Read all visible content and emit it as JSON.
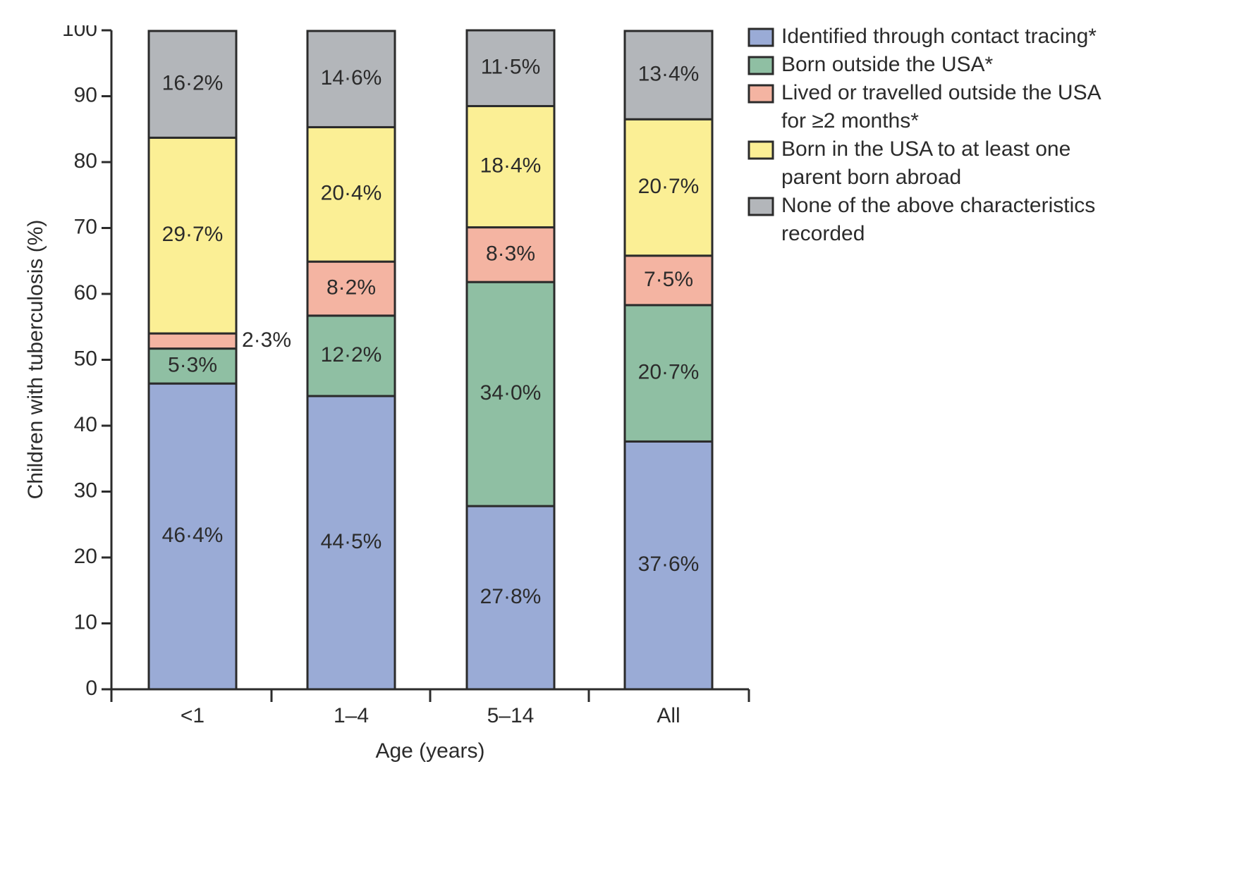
{
  "chart_data": {
    "type": "bar",
    "stacked": true,
    "xlabel": "Age (years)",
    "ylabel": "Children with tuberculosis (%)",
    "ylim": [
      0,
      100
    ],
    "yticks": [
      0,
      10,
      20,
      30,
      40,
      50,
      60,
      70,
      80,
      90,
      100
    ],
    "categories": [
      "<1",
      "1–4",
      "5–14",
      "All"
    ],
    "series": [
      {
        "name": "Identified through contact tracing*",
        "color": "#9aabd6",
        "values": [
          46.4,
          44.5,
          27.8,
          37.6
        ],
        "labels": [
          "46·4%",
          "44·5%",
          "27·8%",
          "37·6%"
        ]
      },
      {
        "name": "Born outside the USA*",
        "color": "#8fbfa3",
        "values": [
          5.3,
          12.2,
          34.0,
          20.7
        ],
        "labels": [
          "5·3%",
          "12·2%",
          "34·0%",
          "20·7%"
        ]
      },
      {
        "name": "Lived or travelled outside the USA for ≥2 months*",
        "color": "#f4b4a2",
        "values": [
          2.3,
          8.2,
          8.3,
          7.5
        ],
        "labels": [
          "2·3%",
          "8·2%",
          "8·3%",
          "7·5%"
        ]
      },
      {
        "name": "Born in the USA to at least one parent born abroad",
        "color": "#fbef95",
        "values": [
          29.7,
          20.4,
          18.4,
          20.7
        ],
        "labels": [
          "29·7%",
          "20·4%",
          "18·4%",
          "20·7%"
        ]
      },
      {
        "name": "None of the above characteristics recorded",
        "color": "#b3b6ba",
        "values": [
          16.2,
          14.6,
          11.5,
          13.4
        ],
        "labels": [
          "16·2%",
          "14·6%",
          "11·5%",
          "13·4%"
        ]
      }
    ],
    "legend": {
      "position": "top-right",
      "entries": [
        [
          "Identified through contact tracing*"
        ],
        [
          "Born outside the USA*"
        ],
        [
          "Lived or travelled outside the USA",
          "for ≥2 months*"
        ],
        [
          "Born in the USA to at least one",
          "parent born abroad"
        ],
        [
          "None of the above characteristics",
          "recorded"
        ]
      ]
    }
  }
}
